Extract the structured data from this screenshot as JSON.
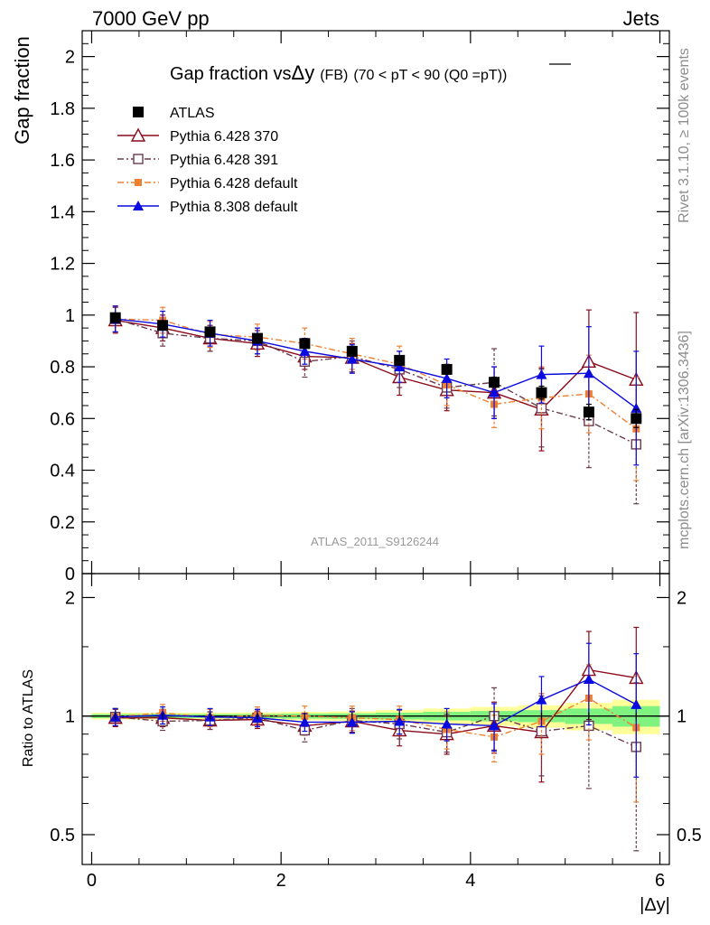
{
  "header": {
    "left": "7000 GeV pp",
    "right": "Jets"
  },
  "main": {
    "title_prefix": "Gap fraction vs",
    "title_var": "Δy",
    "title_sel": "(FB)",
    "title_cut": "(70 < pT <  90 (Q0 =",
    "title_cut_over": "pT",
    "title_cut_end": "))",
    "ylabel": "Gap fraction",
    "analysis_tag": "ATLAS_2011_S9126244"
  },
  "ratio": {
    "ylabel": "Ratio to ATLAS",
    "xlabel": "|Δy|"
  },
  "side": {
    "rivet": "Rivet 3.1.10, ≥ 100k events",
    "mcplots": "mcplots.cern.ch [arXiv:1306.3436]"
  },
  "colors": {
    "atlas": "#000000",
    "py370": "#8b0a1a",
    "py391": "#6b3a4f",
    "py6def": "#f08030",
    "py8def": "#0a0ae0",
    "band_inner": "#7ff27f",
    "band_outer": "#ffff99"
  },
  "chart_data": [
    {
      "type": "scatter",
      "title": "Gap fraction vs Δy (FB) (70 < pT <  90 (Q0 = pT))",
      "xlabel": "",
      "ylabel": "Gap fraction",
      "xlim": [
        -0.1,
        6.1
      ],
      "ylim": [
        0,
        2.1
      ],
      "yticks": [
        0,
        0.2,
        0.4,
        0.6,
        0.8,
        1,
        1.2,
        1.4,
        1.6,
        1.8,
        2
      ],
      "ytick_labels": [
        "0",
        "0.2",
        "0.4",
        "0.6",
        "0.8",
        "1",
        "1.2",
        "1.4",
        "1.6",
        "1.8",
        "2"
      ],
      "legend": "top-left",
      "x": [
        0.25,
        0.75,
        1.25,
        1.75,
        2.25,
        2.75,
        3.25,
        3.75,
        4.25,
        4.75,
        5.25,
        5.75
      ],
      "series": [
        {
          "name": "ATLAS",
          "marker": "square-filled",
          "line": "none",
          "values": [
            0.99,
            0.96,
            0.935,
            0.91,
            0.89,
            0.86,
            0.825,
            0.79,
            0.74,
            0.7,
            0.625,
            0.6
          ],
          "errors": [
            0.01,
            0.01,
            0.01,
            0.01,
            0.012,
            0.012,
            0.015,
            0.018,
            0.02,
            0.025,
            0.03,
            0.035
          ]
        },
        {
          "name": "Pythia 6.428 370",
          "marker": "triangle-open",
          "line": "solid",
          "values": [
            0.98,
            0.95,
            0.91,
            0.89,
            0.84,
            0.835,
            0.76,
            0.71,
            0.7,
            0.635,
            0.82,
            0.75
          ],
          "errors": [
            0.05,
            0.05,
            0.05,
            0.05,
            0.05,
            0.055,
            0.07,
            0.08,
            0.1,
            0.16,
            0.2,
            0.26
          ]
        },
        {
          "name": "Pythia 6.428 391",
          "marker": "square-open",
          "line": "dash-dot",
          "values": [
            0.985,
            0.93,
            0.91,
            0.9,
            0.82,
            0.84,
            0.79,
            0.72,
            0.74,
            0.64,
            0.59,
            0.5
          ],
          "errors": [
            0.05,
            0.05,
            0.05,
            0.05,
            0.06,
            0.06,
            0.07,
            0.08,
            0.13,
            0.15,
            0.18,
            0.23
          ]
        },
        {
          "name": "Pythia 6.428 default",
          "marker": "square-filled-small",
          "line": "dash-dot",
          "values": [
            0.985,
            0.98,
            0.925,
            0.915,
            0.89,
            0.85,
            0.81,
            0.73,
            0.655,
            0.68,
            0.695,
            0.56
          ],
          "errors": [
            0.05,
            0.05,
            0.05,
            0.05,
            0.06,
            0.06,
            0.07,
            0.08,
            0.09,
            0.12,
            0.15,
            0.2
          ]
        },
        {
          "name": "Pythia 8.308 default",
          "marker": "triangle-filled",
          "line": "solid",
          "values": [
            0.985,
            0.965,
            0.93,
            0.9,
            0.86,
            0.83,
            0.8,
            0.755,
            0.7,
            0.77,
            0.775,
            0.64
          ],
          "errors": [
            0.05,
            0.05,
            0.05,
            0.05,
            0.05,
            0.055,
            0.06,
            0.075,
            0.1,
            0.11,
            0.18,
            0.22
          ]
        }
      ]
    },
    {
      "type": "scatter",
      "xlabel": "|Δy|",
      "ylabel": "Ratio to ATLAS",
      "xlim": [
        -0.1,
        6.1
      ],
      "ylim": [
        0.42,
        2.3
      ],
      "log_y": true,
      "xticks": [
        0,
        2,
        4,
        6
      ],
      "xtick_labels": [
        "0",
        "2",
        "4",
        "6"
      ],
      "yticks": [
        0.5,
        1,
        2
      ],
      "ytick_labels": [
        "0.5",
        "1",
        "2"
      ],
      "x": [
        0.25,
        0.75,
        1.25,
        1.75,
        2.25,
        2.75,
        3.25,
        3.75,
        4.25,
        4.75,
        5.25,
        5.75
      ],
      "band_inner": [
        0.012,
        0.012,
        0.012,
        0.012,
        0.015,
        0.016,
        0.02,
        0.025,
        0.03,
        0.035,
        0.045,
        0.06
      ],
      "band_outer": [
        0.02,
        0.02,
        0.02,
        0.022,
        0.025,
        0.028,
        0.035,
        0.045,
        0.055,
        0.065,
        0.08,
        0.1
      ],
      "series": [
        {
          "name": "Pythia 6.428 370",
          "values": [
            0.99,
            0.99,
            0.975,
            0.98,
            0.945,
            0.97,
            0.92,
            0.9,
            0.945,
            0.91,
            1.31,
            1.25
          ],
          "errors": [
            0.05,
            0.05,
            0.05,
            0.05,
            0.05,
            0.06,
            0.08,
            0.1,
            0.14,
            0.23,
            0.33,
            0.43
          ]
        },
        {
          "name": "Pythia 6.428 391",
          "values": [
            0.995,
            0.97,
            0.975,
            0.99,
            0.92,
            0.975,
            0.955,
            0.91,
            1.0,
            0.915,
            0.945,
            0.835
          ],
          "errors": [
            0.05,
            0.05,
            0.05,
            0.05,
            0.06,
            0.07,
            0.08,
            0.1,
            0.18,
            0.21,
            0.29,
            0.38
          ]
        },
        {
          "name": "Pythia 6.428 default",
          "values": [
            0.995,
            1.02,
            0.99,
            1.005,
            1.0,
            0.99,
            0.98,
            0.925,
            0.885,
            0.97,
            1.11,
            0.935
          ],
          "errors": [
            0.05,
            0.05,
            0.05,
            0.05,
            0.06,
            0.07,
            0.08,
            0.1,
            0.12,
            0.17,
            0.24,
            0.33
          ]
        },
        {
          "name": "Pythia 8.308 default",
          "values": [
            0.995,
            1.005,
            0.995,
            0.99,
            0.965,
            0.965,
            0.97,
            0.955,
            0.945,
            1.1,
            1.24,
            1.07
          ],
          "errors": [
            0.05,
            0.05,
            0.05,
            0.05,
            0.05,
            0.06,
            0.07,
            0.09,
            0.13,
            0.16,
            0.29,
            0.37
          ]
        }
      ]
    }
  ]
}
